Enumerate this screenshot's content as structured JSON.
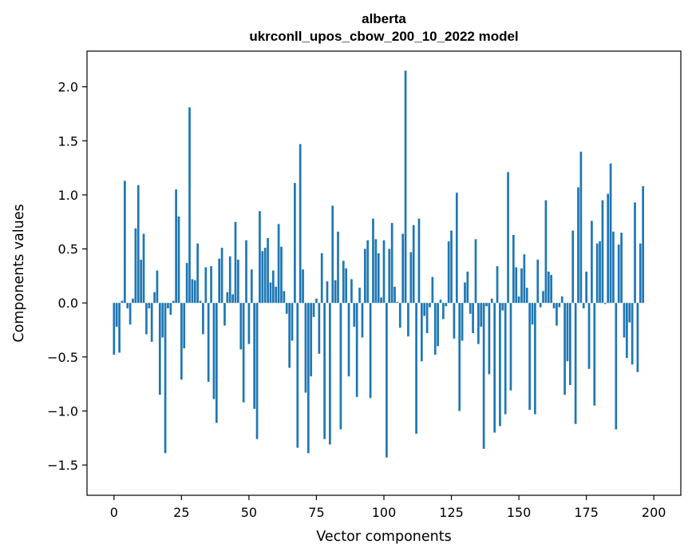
{
  "chart_data": {
    "type": "bar",
    "title": "alberta",
    "subtitle": "ukrconll_upos_cbow_200_10_2022 model",
    "xlabel": "Vector components",
    "ylabel": "Components values",
    "xlim": [
      -10,
      210
    ],
    "ylim": [
      -1.78,
      2.33
    ],
    "grid": false,
    "bar_color": "#1f77b4",
    "x_ticks": [
      0,
      25,
      50,
      75,
      100,
      125,
      150,
      175,
      200
    ],
    "y_ticks": [
      -1.5,
      -1.0,
      -0.5,
      0.0,
      0.5,
      1.0,
      1.5,
      2.0
    ],
    "y_tick_labels": [
      "−1.5",
      "−1.0",
      "−0.5",
      "0.0",
      "0.5",
      "1.0",
      "1.5",
      "2.0"
    ],
    "values": [
      -0.48,
      -0.22,
      -0.46,
      0.02,
      1.13,
      -0.05,
      -0.2,
      0.04,
      0.69,
      1.09,
      0.4,
      0.64,
      -0.29,
      -0.05,
      -0.36,
      0.1,
      0.3,
      -0.85,
      -0.32,
      -1.39,
      -0.05,
      -0.11,
      0.02,
      1.05,
      0.8,
      -0.71,
      -0.42,
      0.37,
      1.81,
      0.22,
      0.21,
      0.55,
      0.02,
      -0.29,
      0.33,
      -0.73,
      0.34,
      -0.89,
      -1.11,
      0.41,
      0.51,
      -0.21,
      0.1,
      0.43,
      0.08,
      0.75,
      0.4,
      -0.43,
      -0.92,
      0.58,
      -0.38,
      0.31,
      -0.98,
      -1.26,
      0.85,
      0.48,
      0.51,
      0.6,
      0.19,
      0.3,
      0.15,
      0.73,
      0.52,
      0.11,
      -0.1,
      -0.6,
      -0.35,
      1.11,
      -1.34,
      1.47,
      0.31,
      -0.83,
      -1.39,
      -0.68,
      -0.13,
      0.04,
      -0.47,
      0.46,
      -1.26,
      0.2,
      -1.31,
      0.9,
      0.21,
      0.66,
      -1.17,
      0.39,
      0.32,
      -0.68,
      0.22,
      -0.22,
      -0.87,
      0.14,
      -0.32,
      0.5,
      0.58,
      -0.88,
      0.78,
      0.59,
      0.46,
      0.05,
      0.58,
      -1.43,
      0.5,
      0.74,
      0.15,
      0.01,
      -0.23,
      0.64,
      2.15,
      -0.31,
      0.47,
      0.72,
      -1.21,
      0.78,
      -0.54,
      -0.12,
      -0.28,
      -0.04,
      0.24,
      -0.48,
      -0.4,
      0.03,
      -0.15,
      -0.03,
      0.57,
      0.67,
      -0.33,
      1.02,
      -1.0,
      -0.35,
      0.19,
      0.29,
      -0.1,
      -0.28,
      0.59,
      -0.38,
      -0.22,
      -1.35,
      -0.03,
      -0.66,
      0.04,
      -1.2,
      0.34,
      -1.14,
      -0.07,
      -1.03,
      1.21,
      -0.81,
      0.63,
      0.33,
      0.06,
      0.32,
      0.45,
      0.14,
      -0.99,
      -0.2,
      -1.03,
      0.4,
      -0.04,
      0.11,
      0.95,
      0.29,
      0.26,
      -0.05,
      -0.21,
      -0.04,
      0.06,
      -0.85,
      -0.54,
      -0.76,
      0.67,
      -1.12,
      1.07,
      1.4,
      -0.05,
      0.29,
      -0.61,
      0.76,
      -0.95,
      0.55,
      0.57,
      0.95,
      -0.01,
      1.01,
      1.29,
      0.66,
      -1.17,
      0.54,
      0.65,
      -0.32,
      -0.51,
      -0.18,
      -0.57,
      0.93,
      -0.64,
      0.55,
      1.08
    ]
  }
}
